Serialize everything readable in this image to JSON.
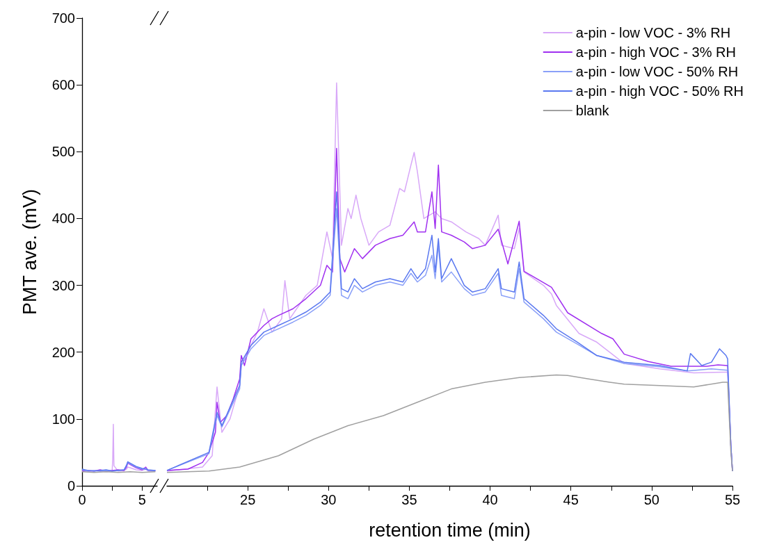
{
  "chart_data": [
    {
      "type": "line",
      "ylabel": "PMT ave. (mV)",
      "xlim": [
        0,
        6.25
      ],
      "xticks": [
        0,
        {
          "value": 2.5,
          "label": null
        },
        5
      ],
      "ylim": [
        0,
        700
      ],
      "yticks": [
        0,
        100,
        200,
        300,
        400,
        500,
        600,
        700
      ],
      "marker": "none",
      "legend": false,
      "series": [
        {
          "color": "#d8a8f8",
          "x": [
            0,
            0.5,
            1,
            1.5,
            2,
            2.5,
            2.55,
            2.6,
            2.65,
            3,
            3.5,
            3.7,
            3.8,
            4,
            4.5,
            5,
            5.3,
            5.5,
            6.1
          ],
          "values": [
            22,
            21,
            23,
            22,
            21,
            22,
            40,
            92,
            30,
            22,
            23,
            25,
            28,
            27,
            24,
            23,
            25,
            22,
            22
          ]
        },
        {
          "color": "#a030f0",
          "x": [
            0,
            0.5,
            1,
            1.5,
            2,
            2.5,
            3,
            3.5,
            3.7,
            3.8,
            4,
            4.5,
            5,
            5.3,
            5.5,
            6.1
          ],
          "values": [
            22,
            23,
            22,
            24,
            22,
            23,
            24,
            23,
            28,
            34,
            32,
            27,
            24,
            28,
            23,
            23
          ]
        },
        {
          "color": "#8aa0f8",
          "x": [
            0,
            0.5,
            1,
            1.5,
            2,
            2.5,
            3,
            3.5,
            3.7,
            3.8,
            4,
            4.5,
            5,
            5.3,
            5.5,
            6.1
          ],
          "values": [
            24,
            22,
            23,
            22,
            23,
            22,
            23,
            24,
            30,
            35,
            33,
            28,
            25,
            26,
            23,
            23
          ]
        },
        {
          "color": "#5a78f0",
          "x": [
            0,
            0.5,
            1,
            1.5,
            2,
            2.5,
            3,
            3.5,
            3.7,
            3.8,
            4,
            4.5,
            5,
            5.3,
            5.5,
            6.1
          ],
          "values": [
            25,
            23,
            22,
            23,
            24,
            22,
            23,
            24,
            31,
            36,
            34,
            29,
            26,
            25,
            24,
            23
          ]
        },
        {
          "color": "#a0a0a0",
          "x": [
            0,
            1,
            2,
            3,
            4,
            5,
            6.1
          ],
          "values": [
            21,
            20,
            21,
            20,
            21,
            20,
            21
          ]
        }
      ]
    },
    {
      "type": "line",
      "xlabel": "retention time (min)",
      "xlim": [
        20,
        55
      ],
      "xticks": [
        {
          "value": 22.5,
          "label": null
        },
        25,
        {
          "value": 27.5,
          "label": null
        },
        30,
        {
          "value": 32.5,
          "label": null
        },
        35,
        {
          "value": 37.5,
          "label": null
        },
        40,
        {
          "value": 42.5,
          "label": null
        },
        45,
        {
          "value": 47.5,
          "label": null
        },
        50,
        {
          "value": 52.5,
          "label": null
        },
        55
      ],
      "ylim": [
        0,
        700
      ],
      "yticks": [
        0,
        100,
        200,
        300,
        400,
        500,
        600,
        700
      ],
      "tick_labels": "x",
      "marker": "none",
      "legend": "top right",
      "series": [
        {
          "name": "a-pin - low VOC - 3% RH",
          "color": "#d8a8f8",
          "x": [
            20.0,
            22.2,
            22.8,
            23.1,
            23.4,
            23.9,
            24.5,
            24.6,
            25.2,
            25.6,
            26.0,
            26.5,
            27.1,
            27.3,
            27.6,
            28.6,
            29.3,
            29.9,
            30.25,
            30.5,
            30.8,
            31.2,
            31.4,
            31.7,
            32.0,
            32.5,
            33.1,
            33.8,
            34.4,
            34.7,
            35.1,
            35.3,
            35.5,
            35.9,
            36.6,
            37.0,
            37.6,
            38.5,
            39.3,
            39.7,
            40.5,
            40.7,
            41.5,
            41.8,
            42.1,
            43.3,
            43.8,
            44.1,
            45.5,
            46.6,
            48.3,
            50.5,
            52.6,
            54.4,
            54.7,
            54.9,
            55.0
          ],
          "values": [
            22,
            28,
            45,
            148,
            80,
            100,
            150,
            180,
            210,
            230,
            265,
            230,
            250,
            307,
            250,
            285,
            300,
            380,
            340,
            603,
            360,
            415,
            400,
            435,
            400,
            360,
            380,
            390,
            445,
            440,
            480,
            499,
            470,
            400,
            410,
            400,
            395,
            380,
            370,
            360,
            405,
            360,
            355,
            385,
            320,
            300,
            287,
            270,
            228,
            215,
            183,
            175,
            169,
            170,
            170,
            60,
            22
          ]
        },
        {
          "name": "a-pin - high VOC - 3% RH",
          "color": "#a030f0",
          "x": [
            20.0,
            21.3,
            22.2,
            22.6,
            23.0,
            23.1,
            23.3,
            23.7,
            24.1,
            24.5,
            24.6,
            24.8,
            25.2,
            26.0,
            26.5,
            26.9,
            27.8,
            28.6,
            29.5,
            29.9,
            30.25,
            30.5,
            30.7,
            31.0,
            31.6,
            32.1,
            32.9,
            33.8,
            34.6,
            35.3,
            35.5,
            36.0,
            36.4,
            36.6,
            36.8,
            37.0,
            37.6,
            38.4,
            38.9,
            39.7,
            40.5,
            41.1,
            41.8,
            42.1,
            43.8,
            44.8,
            46.9,
            47.6,
            48.3,
            49.8,
            51.2,
            53.4,
            54.1,
            54.7,
            54.9,
            55.0
          ],
          "values": [
            23,
            25,
            35,
            50,
            80,
            125,
            95,
            105,
            130,
            160,
            195,
            180,
            220,
            240,
            250,
            255,
            265,
            280,
            300,
            330,
            320,
            505,
            340,
            320,
            355,
            340,
            360,
            370,
            375,
            395,
            380,
            380,
            440,
            385,
            480,
            380,
            375,
            365,
            355,
            360,
            384,
            332,
            396,
            321,
            297,
            259,
            228,
            220,
            197,
            186,
            179,
            179,
            181,
            180,
            60,
            22
          ]
        },
        {
          "name": "a-pin - low VOC - 50% RH",
          "color": "#8aa0f8",
          "x": [
            20.0,
            22.6,
            23.1,
            23.4,
            24.5,
            24.6,
            25.2,
            26.0,
            26.9,
            27.8,
            28.6,
            29.5,
            30.1,
            30.5,
            30.8,
            31.2,
            31.6,
            32.1,
            32.9,
            33.8,
            34.6,
            35.1,
            35.5,
            36.0,
            36.4,
            36.6,
            36.8,
            37.0,
            37.6,
            38.4,
            38.9,
            39.7,
            40.5,
            40.7,
            41.5,
            41.8,
            42.1,
            43.3,
            44.1,
            45.4,
            46.6,
            48.3,
            50.5,
            52.2,
            53.7,
            54.7,
            54.9,
            55.0
          ],
          "values": [
            23,
            48,
            105,
            88,
            145,
            180,
            205,
            225,
            235,
            245,
            255,
            270,
            285,
            415,
            285,
            280,
            300,
            290,
            300,
            305,
            300,
            318,
            305,
            315,
            345,
            310,
            360,
            305,
            320,
            295,
            285,
            290,
            318,
            285,
            280,
            325,
            275,
            250,
            230,
            212,
            195,
            183,
            178,
            172,
            175,
            173,
            60,
            22
          ]
        },
        {
          "name": "a-pin - high VOC - 50% RH",
          "color": "#5a78f0",
          "x": [
            20.0,
            22.6,
            23.1,
            23.4,
            24.5,
            24.6,
            25.2,
            26.0,
            26.9,
            27.8,
            28.6,
            29.5,
            30.1,
            30.5,
            30.8,
            31.2,
            31.6,
            32.1,
            32.9,
            33.8,
            34.6,
            35.1,
            35.5,
            36.0,
            36.4,
            36.6,
            36.8,
            37.0,
            37.6,
            38.4,
            38.9,
            39.7,
            40.5,
            40.7,
            41.5,
            41.8,
            42.1,
            43.3,
            44.1,
            45.4,
            46.6,
            48.3,
            50.5,
            52.2,
            52.4,
            53.1,
            53.7,
            54.2,
            54.6,
            54.7,
            54.9,
            55.0
          ],
          "values": [
            23,
            50,
            110,
            90,
            150,
            185,
            210,
            230,
            240,
            250,
            260,
            275,
            290,
            440,
            295,
            290,
            310,
            295,
            305,
            310,
            305,
            325,
            310,
            325,
            375,
            320,
            370,
            310,
            340,
            300,
            290,
            295,
            325,
            295,
            290,
            335,
            280,
            255,
            235,
            215,
            195,
            185,
            180,
            172,
            198,
            180,
            185,
            205,
            195,
            190,
            60,
            22
          ]
        },
        {
          "name": "blank",
          "color": "#a0a0a0",
          "x": [
            20.0,
            22.6,
            24.5,
            26.9,
            29.1,
            31.2,
            33.4,
            35.5,
            37.6,
            39.7,
            41.8,
            44.1,
            44.8,
            46.1,
            47.4,
            48.3,
            50.5,
            52.6,
            54.4,
            54.7,
            54.9,
            55.0
          ],
          "values": [
            20,
            22,
            28,
            45,
            70,
            90,
            105,
            125,
            145,
            155,
            162,
            166,
            165,
            160,
            155,
            152,
            150,
            148,
            155,
            155,
            50,
            22
          ]
        }
      ]
    }
  ]
}
